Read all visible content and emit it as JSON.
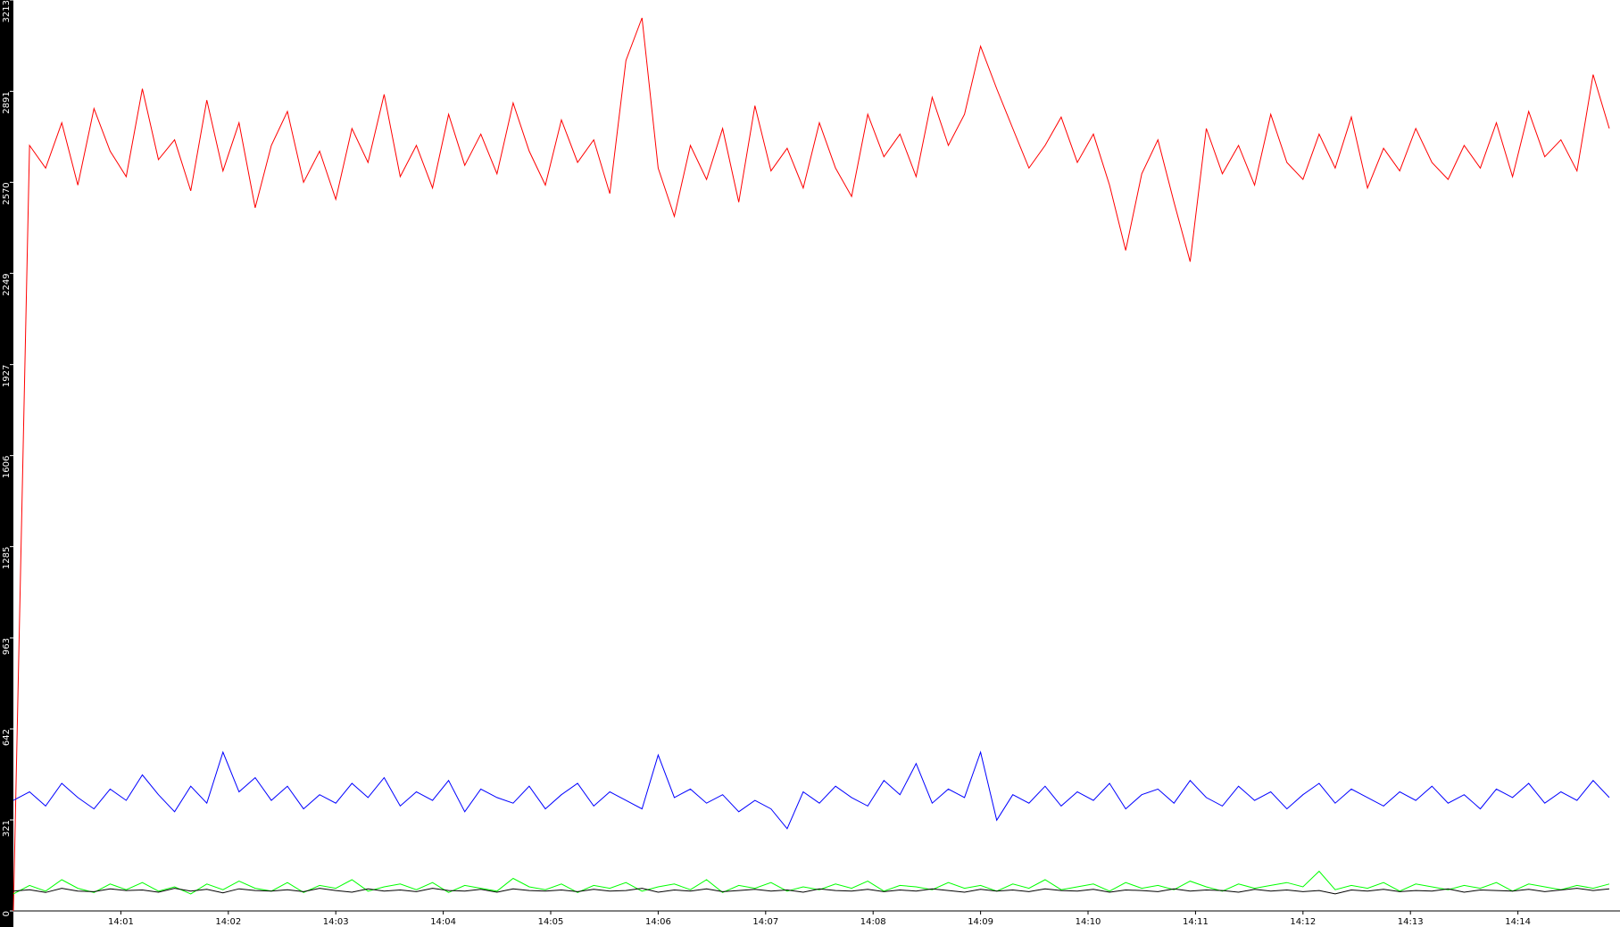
{
  "chart_data": {
    "type": "line",
    "x": [
      0,
      0.15,
      0.3,
      0.45,
      0.6,
      0.75,
      0.9,
      1.05,
      1.2,
      1.35,
      1.5,
      1.65,
      1.8,
      1.95,
      2.1,
      2.25,
      2.4,
      2.55,
      2.7,
      2.85,
      3,
      3.15,
      3.3,
      3.45,
      3.6,
      3.75,
      3.9,
      4.05,
      4.2,
      4.35,
      4.5,
      4.65,
      4.8,
      4.95,
      5.1,
      5.25,
      5.4,
      5.55,
      5.7,
      5.85,
      6,
      6.15,
      6.3,
      6.45,
      6.6,
      6.75,
      6.9,
      7.05,
      7.2,
      7.35,
      7.5,
      7.65,
      7.8,
      7.95,
      8.1,
      8.25,
      8.4,
      8.55,
      8.7,
      8.85,
      9,
      9.15,
      9.3,
      9.45,
      9.6,
      9.75,
      9.9,
      10.05,
      10.2,
      10.35,
      10.5,
      10.65,
      10.8,
      10.95,
      11.1,
      11.25,
      11.4,
      11.55,
      11.7,
      11.85,
      12,
      12.15,
      12.3,
      12.45,
      12.6,
      12.75,
      12.9,
      13.05,
      13.2,
      13.35,
      13.5,
      13.65,
      13.8,
      13.95,
      14.1,
      14.25,
      14.4,
      14.55,
      14.7,
      14.85
    ],
    "series": [
      {
        "color": "#ff0000",
        "values": [
          0,
          2700,
          2620,
          2780,
          2560,
          2830,
          2680,
          2590,
          2900,
          2650,
          2720,
          2540,
          2860,
          2610,
          2780,
          2480,
          2700,
          2820,
          2570,
          2680,
          2510,
          2760,
          2640,
          2880,
          2590,
          2700,
          2550,
          2810,
          2630,
          2740,
          2600,
          2850,
          2680,
          2560,
          2790,
          2640,
          2720,
          2530,
          3000,
          3150,
          2620,
          2450,
          2700,
          2580,
          2760,
          2500,
          2840,
          2610,
          2690,
          2550,
          2780,
          2620,
          2520,
          2810,
          2660,
          2740,
          2590,
          2870,
          2700,
          2810,
          3050,
          2900,
          2760,
          2620,
          2700,
          2800,
          2640,
          2740,
          2560,
          2330,
          2600,
          2720,
          2500,
          2290,
          2760,
          2600,
          2700,
          2560,
          2810,
          2640,
          2580,
          2740,
          2620,
          2800,
          2550,
          2690,
          2610,
          2760,
          2640,
          2580,
          2700,
          2620,
          2780,
          2590,
          2820,
          2660,
          2720,
          2610,
          2950,
          2760
        ]
      },
      {
        "color": "#0000ff",
        "values": [
          390,
          420,
          370,
          450,
          400,
          360,
          430,
          390,
          480,
          410,
          350,
          440,
          380,
          560,
          420,
          470,
          390,
          440,
          360,
          410,
          380,
          450,
          400,
          470,
          370,
          420,
          390,
          460,
          350,
          430,
          400,
          380,
          440,
          360,
          410,
          450,
          370,
          420,
          390,
          360,
          550,
          400,
          430,
          380,
          410,
          350,
          390,
          360,
          290,
          420,
          380,
          440,
          400,
          370,
          460,
          410,
          520,
          380,
          430,
          400,
          560,
          320,
          410,
          380,
          440,
          370,
          420,
          390,
          450,
          360,
          410,
          430,
          380,
          460,
          400,
          370,
          440,
          390,
          420,
          360,
          410,
          450,
          380,
          430,
          400,
          370,
          420,
          390,
          440,
          380,
          410,
          360,
          430,
          400,
          450,
          380,
          420,
          390,
          460,
          400
        ]
      },
      {
        "color": "#00ff00",
        "values": [
          60,
          90,
          70,
          110,
          80,
          65,
          95,
          75,
          100,
          70,
          85,
          60,
          95,
          75,
          105,
          80,
          70,
          100,
          65,
          90,
          80,
          110,
          70,
          85,
          95,
          75,
          100,
          65,
          90,
          80,
          70,
          115,
          85,
          75,
          95,
          65,
          90,
          80,
          100,
          70,
          85,
          95,
          75,
          110,
          65,
          90,
          80,
          100,
          70,
          85,
          75,
          95,
          80,
          105,
          70,
          90,
          85,
          75,
          100,
          80,
          90,
          70,
          95,
          80,
          110,
          75,
          85,
          95,
          70,
          100,
          80,
          90,
          75,
          105,
          85,
          70,
          95,
          80,
          90,
          100,
          85,
          140,
          75,
          90,
          80,
          100,
          70,
          95,
          85,
          75,
          90,
          80,
          100,
          70,
          95,
          85,
          75,
          90,
          80,
          95
        ]
      },
      {
        "color": "#000000",
        "values": [
          70,
          75,
          65,
          80,
          70,
          68,
          78,
          72,
          74,
          66,
          80,
          70,
          76,
          64,
          78,
          72,
          70,
          75,
          68,
          80,
          72,
          66,
          78,
          70,
          74,
          68,
          80,
          72,
          70,
          76,
          66,
          78,
          72,
          70,
          74,
          68,
          76,
          70,
          72,
          80,
          66,
          74,
          70,
          78,
          68,
          72,
          76,
          70,
          74,
          66,
          78,
          72,
          70,
          76,
          68,
          74,
          70,
          78,
          72,
          66,
          76,
          70,
          74,
          68,
          78,
          72,
          70,
          76,
          66,
          74,
          72,
          68,
          78,
          70,
          74,
          72,
          66,
          76,
          70,
          74,
          68,
          72,
          60,
          74,
          70,
          76,
          68,
          72,
          70,
          78,
          66,
          74,
          72,
          70,
          76,
          68,
          74,
          80,
          72,
          78
        ]
      }
    ],
    "xlim": [
      0,
      14.95
    ],
    "xticks": [
      {
        "value": 1,
        "label": "14:01"
      },
      {
        "value": 2,
        "label": "14:02"
      },
      {
        "value": 3,
        "label": "14:03"
      },
      {
        "value": 4,
        "label": "14:04"
      },
      {
        "value": 5,
        "label": "14:05"
      },
      {
        "value": 6,
        "label": "14:06"
      },
      {
        "value": 7,
        "label": "14:07"
      },
      {
        "value": 8,
        "label": "14:08"
      },
      {
        "value": 9,
        "label": "14:09"
      },
      {
        "value": 10,
        "label": "14:10"
      },
      {
        "value": 11,
        "label": "14:11"
      },
      {
        "value": 12,
        "label": "14:12"
      },
      {
        "value": 13,
        "label": "14:13"
      },
      {
        "value": 14,
        "label": "14:14"
      }
    ],
    "ylim": [
      0,
      3213
    ],
    "yticks": [
      0,
      321,
      642,
      963,
      1285,
      1606,
      1927,
      2249,
      2570,
      2891,
      3213
    ]
  }
}
